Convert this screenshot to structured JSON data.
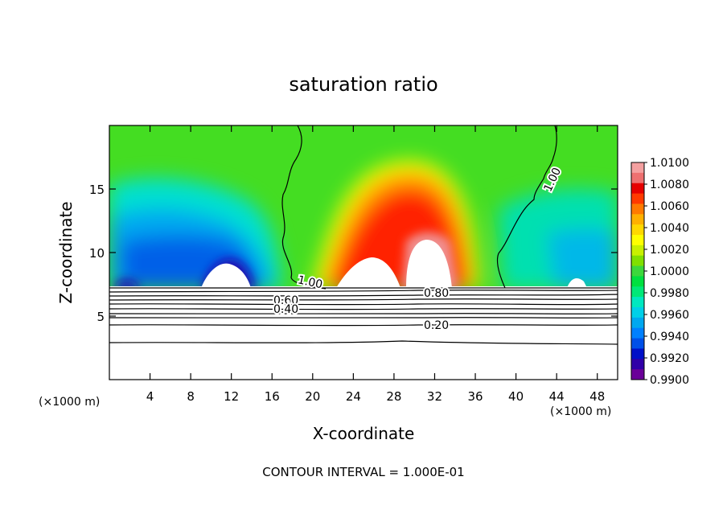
{
  "chart_data": {
    "type": "heatmap",
    "title": "saturation ratio",
    "xlabel": "X-coordinate",
    "ylabel": "Z-coordinate",
    "x_unit": "(×1000 m)",
    "x_unit_right": "(×1000 m)",
    "footnote": "CONTOUR INTERVAL = 1.000E-01",
    "xlim": [
      0,
      50
    ],
    "ylim": [
      0,
      20
    ],
    "x_ticks": [
      4,
      8,
      12,
      16,
      20,
      24,
      28,
      32,
      36,
      40,
      44,
      48
    ],
    "y_ticks": [
      5,
      10,
      15
    ],
    "colorbar": {
      "min": 0.99,
      "max": 1.01,
      "labels": [
        "1.0100",
        "1.0080",
        "1.0060",
        "1.0040",
        "1.0020",
        "1.0000",
        "0.9980",
        "0.9960",
        "0.9940",
        "0.9920",
        "0.9900"
      ],
      "colors": [
        "#f4a0a0",
        "#ee7070",
        "#e60000",
        "#ff3a00",
        "#ff7a00",
        "#ffb000",
        "#ffd800",
        "#ffff00",
        "#c8f000",
        "#80e000",
        "#3cd83c",
        "#00e040",
        "#00e878",
        "#00e8c0",
        "#00d0e8",
        "#00a8f0",
        "#0080ff",
        "#0050e8",
        "#0010c8",
        "#3000a8",
        "#6a0098"
      ]
    },
    "contours": [
      {
        "label": "1.00",
        "values": []
      },
      {
        "label": "0.80",
        "values": []
      },
      {
        "label": "0.60",
        "values": []
      },
      {
        "label": "0.40",
        "values": []
      },
      {
        "label": "0.20",
        "values": []
      }
    ],
    "contour_labels": [
      "1.00",
      "1.00",
      "0.80",
      "0.60",
      "0.40",
      "0.20"
    ]
  }
}
